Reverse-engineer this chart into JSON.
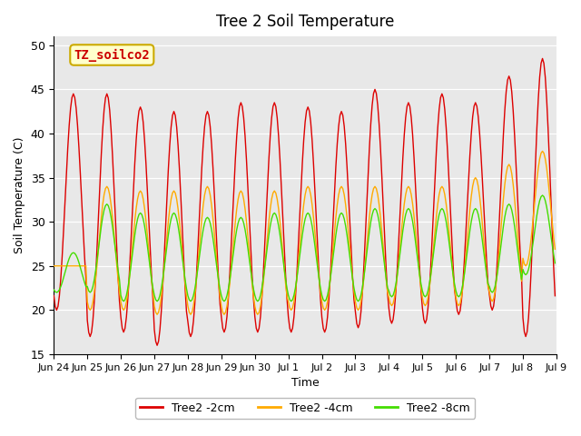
{
  "title": "Tree 2 Soil Temperature",
  "xlabel": "Time",
  "ylabel": "Soil Temperature (C)",
  "ylim": [
    15,
    51
  ],
  "yticks": [
    15,
    20,
    25,
    30,
    35,
    40,
    45,
    50
  ],
  "annotation_text": "TZ_soilco2",
  "annotation_color": "#cc0000",
  "annotation_bg": "#ffffcc",
  "annotation_border": "#ccaa00",
  "legend_labels": [
    "Tree2 -2cm",
    "Tree2 -4cm",
    "Tree2 -8cm"
  ],
  "line_colors": [
    "#dd0000",
    "#ffaa00",
    "#44dd00"
  ],
  "plot_bg": "#e8e8e8",
  "x_tick_labels": [
    "Jun 24",
    "Jun 25",
    "Jun 26",
    "Jun 27",
    "Jun 28",
    "Jun 29",
    "Jun 30",
    "Jul 1",
    "Jul 2",
    "Jul 3",
    "Jul 4",
    "Jul 5",
    "Jul 6",
    "Jul 7",
    "Jul 8",
    "Jul 9"
  ],
  "num_days": 15,
  "day_peaks_2": [
    44.5,
    44.5,
    43.0,
    42.5,
    42.5,
    43.5,
    43.5,
    43.0,
    42.5,
    45.0,
    43.5,
    44.5,
    43.5,
    46.5,
    48.5
  ],
  "day_troughs_2": [
    20.0,
    17.0,
    17.5,
    16.0,
    17.0,
    17.5,
    17.5,
    17.5,
    17.5,
    18.0,
    18.5,
    18.5,
    19.5,
    20.0,
    17.0
  ],
  "day_peaks_4": [
    25.0,
    34.0,
    33.5,
    33.5,
    34.0,
    33.5,
    33.5,
    34.0,
    34.0,
    34.0,
    34.0,
    34.0,
    35.0,
    36.5,
    38.0
  ],
  "day_troughs_4": [
    25.0,
    20.0,
    20.0,
    19.5,
    19.5,
    19.5,
    19.5,
    20.0,
    20.0,
    20.0,
    20.5,
    20.5,
    20.5,
    21.0,
    25.0
  ],
  "day_peaks_8": [
    26.5,
    32.0,
    31.0,
    31.0,
    30.5,
    30.5,
    31.0,
    31.0,
    31.0,
    31.5,
    31.5,
    31.5,
    31.5,
    32.0,
    33.0
  ],
  "day_troughs_8": [
    22.0,
    22.0,
    21.0,
    21.0,
    21.0,
    21.0,
    21.0,
    21.0,
    21.0,
    21.0,
    21.5,
    21.5,
    21.5,
    22.0,
    24.0
  ],
  "peak_hour_2": 14,
  "trough_hour_2": 5,
  "peak_hour_4": 14,
  "trough_hour_4": 6,
  "peak_hour_8": 14,
  "trough_hour_8": 7
}
